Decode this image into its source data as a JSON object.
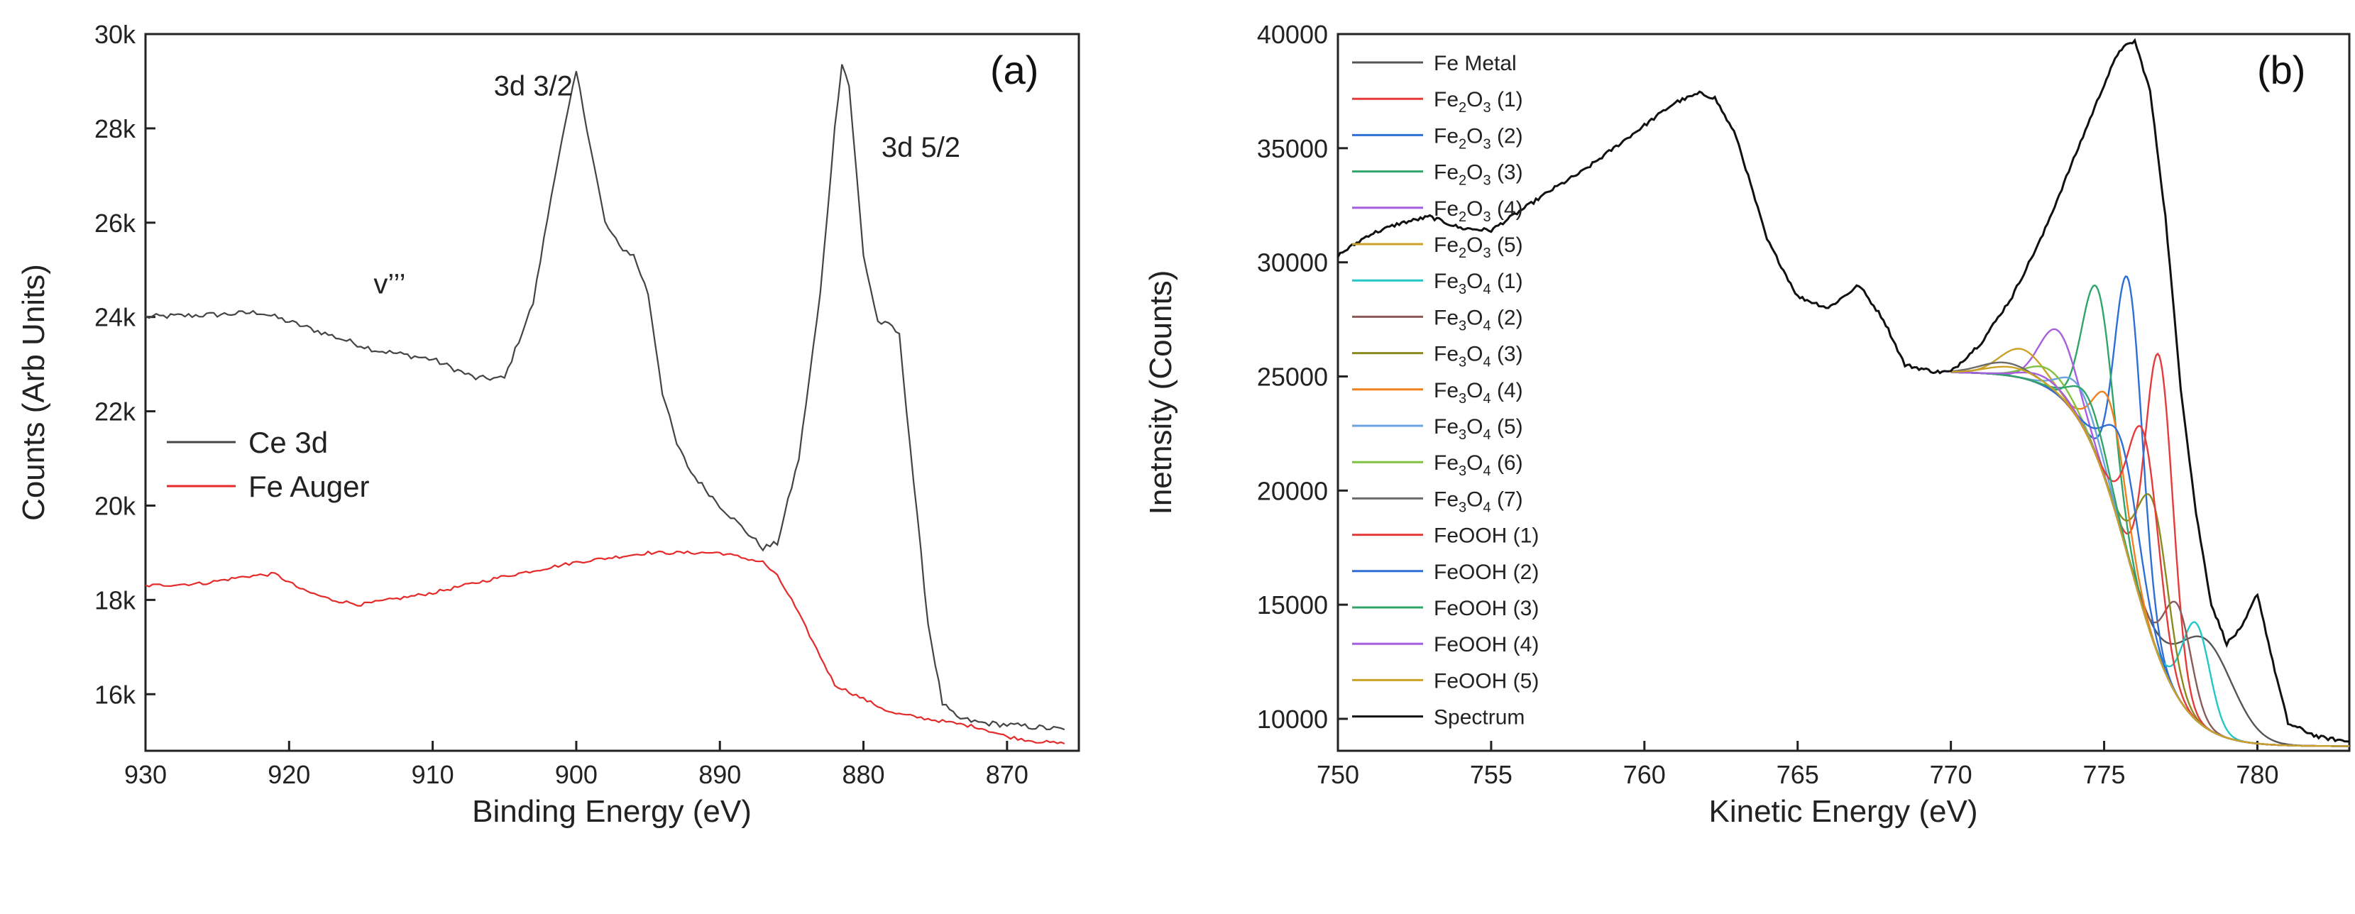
{
  "chart_data": [
    {
      "type": "line",
      "panel_label": "(a)",
      "xlabel": "Binding Energy (eV)",
      "ylabel": "Counts (Arb Units)",
      "xlim": [
        930,
        865
      ],
      "ylim": [
        14800,
        30000
      ],
      "x_ticks": [
        930,
        920,
        910,
        900,
        890,
        880,
        870
      ],
      "y_ticks": [
        16000,
        18000,
        20000,
        22000,
        24000,
        26000,
        28000,
        30000
      ],
      "y_tick_labels": [
        "16k",
        "18k",
        "20k",
        "22k",
        "24k",
        "26k",
        "28k",
        "30k"
      ],
      "annotations": [
        {
          "text": "3d 3/2",
          "x": 903,
          "y": 28700
        },
        {
          "text": "3d 5/2",
          "x": 876,
          "y": 27400
        },
        {
          "text": "v’’’",
          "x": 913,
          "y": 24500
        }
      ],
      "legend": {
        "position": "center-left"
      },
      "series": [
        {
          "name": "Ce 3d",
          "color": "#444444",
          "x": [
            930,
            925,
            922,
            918,
            914,
            910,
            907,
            905,
            903,
            901.5,
            900,
            899,
            898,
            897,
            896,
            895,
            894,
            893,
            892,
            890,
            888,
            887,
            886,
            884.5,
            883,
            882,
            881.5,
            881,
            880,
            879,
            878,
            877.5,
            876.5,
            875.5,
            874.5,
            873.5,
            872,
            870,
            868,
            866
          ],
          "values": [
            24000,
            24050,
            24100,
            23700,
            23300,
            23100,
            22700,
            22700,
            24300,
            27000,
            29200,
            27600,
            26000,
            25500,
            25300,
            24500,
            22400,
            21300,
            20700,
            20000,
            19400,
            19100,
            19200,
            21000,
            24500,
            28000,
            29400,
            28900,
            25300,
            23900,
            23800,
            23600,
            20500,
            17500,
            15800,
            15500,
            15400,
            15350,
            15300,
            15250
          ]
        },
        {
          "name": "Fe Auger",
          "color": "#e52a2a",
          "x": [
            930,
            926,
            923,
            921,
            919,
            917,
            915,
            912,
            910,
            905,
            900,
            895,
            890,
            887,
            886,
            885,
            884,
            883,
            882,
            880,
            878,
            876,
            874,
            872,
            870,
            868,
            866
          ],
          "values": [
            18300,
            18350,
            18500,
            18550,
            18200,
            18000,
            17900,
            18050,
            18150,
            18500,
            18800,
            19000,
            19000,
            18800,
            18500,
            18000,
            17400,
            16800,
            16200,
            15900,
            15600,
            15500,
            15400,
            15300,
            15100,
            15000,
            14950
          ]
        }
      ]
    },
    {
      "type": "line",
      "panel_label": "(b)",
      "xlabel": "Kinetic Energy (eV)",
      "ylabel": "Inetnsity (Counts)",
      "xlim": [
        750,
        783
      ],
      "ylim": [
        8600,
        40000
      ],
      "x_ticks": [
        750,
        755,
        760,
        765,
        770,
        775,
        780
      ],
      "y_ticks": [
        10000,
        15000,
        20000,
        25000,
        30000,
        35000,
        40000
      ],
      "legend": {
        "position": "top-left"
      },
      "series": [
        {
          "name": "Fe Metal",
          "sub": "",
          "suffix": "",
          "color": "#555555",
          "base_start": 770,
          "peak": {
            "x": 778.3,
            "y": 13500,
            "w": 0.9
          }
        },
        {
          "name": "Fe",
          "sub": "2",
          "suffix": "O₃ (1)",
          "label": "Fe₂O₃ (1)",
          "color": "#e63b3b",
          "base_start": 770,
          "peak": {
            "x": 776.8,
            "y": 25900,
            "w": 0.45
          }
        },
        {
          "name": "Fe",
          "sub": "2",
          "suffix": "O₃ (2)",
          "label": "Fe₂O₃ (2)",
          "color": "#2e6fd6",
          "base_start": 770,
          "peak": {
            "x": 775.8,
            "y": 29200,
            "w": 0.45
          }
        },
        {
          "name": "Fe",
          "sub": "2",
          "suffix": "O₃ (3)",
          "label": "Fe₂O₃ (3)",
          "color": "#2fa56a",
          "base_start": 770,
          "peak": {
            "x": 774.8,
            "y": 28800,
            "w": 0.5
          }
        },
        {
          "name": "Fe",
          "sub": "2",
          "suffix": "O₃ (4)",
          "label": "Fe₂O₃ (4)",
          "color": "#a55fe0",
          "base_start": 770,
          "peak": {
            "x": 773.5,
            "y": 27000,
            "w": 0.6
          }
        },
        {
          "name": "Fe",
          "sub": "2",
          "suffix": "O₃ (5)",
          "label": "Fe₂O₃ (5)",
          "color": "#c9a227",
          "base_start": 770,
          "peak": {
            "x": 772.3,
            "y": 26200,
            "w": 0.7
          }
        },
        {
          "name": "Fe",
          "sub": "3",
          "suffix": "O₄ (1)",
          "label": "Fe₃O₄ (1)",
          "color": "#22c7c7",
          "base_start": 770,
          "peak": {
            "x": 778.0,
            "y": 14200,
            "w": 0.45
          }
        },
        {
          "name": "Fe",
          "sub": "3",
          "suffix": "O₄ (2)",
          "label": "Fe₃O₄ (2)",
          "color": "#8a5a5a",
          "base_start": 770,
          "peak": {
            "x": 777.4,
            "y": 15000,
            "w": 0.45
          }
        },
        {
          "name": "Fe",
          "sub": "3",
          "suffix": "O₄ (3)",
          "label": "Fe₃O₄ (3)",
          "color": "#8a8a1e",
          "base_start": 770,
          "peak": {
            "x": 776.6,
            "y": 19500,
            "w": 0.5
          }
        },
        {
          "name": "Fe",
          "sub": "3",
          "suffix": "O₄ (4)",
          "label": "Fe₃O₄ (4)",
          "color": "#f0811f",
          "base_start": 770,
          "peak": {
            "x": 775.2,
            "y": 23800,
            "w": 0.5
          }
        },
        {
          "name": "Fe",
          "sub": "3",
          "suffix": "O₄ (5)",
          "label": "Fe₃O₄ (5)",
          "color": "#6aa3e0",
          "base_start": 770,
          "peak": {
            "x": 774.2,
            "y": 24500,
            "w": 0.6
          }
        },
        {
          "name": "Fe",
          "sub": "3",
          "suffix": "O₄ (6)",
          "label": "Fe₃O₄ (6)",
          "color": "#7fc241",
          "base_start": 770,
          "peak": {
            "x": 773.2,
            "y": 25300,
            "w": 0.7
          }
        },
        {
          "name": "Fe",
          "sub": "3",
          "suffix": "O₄ (7)",
          "label": "Fe₃O₄ (7)",
          "color": "#6b6b6b",
          "base_start": 770,
          "peak": {
            "x": 771.8,
            "y": 25600,
            "w": 0.8
          }
        },
        {
          "name": "FeOOH (1)",
          "sub": "",
          "suffix": "",
          "label": "FeOOH (1)",
          "color": "#e63b3b",
          "base_start": 770,
          "peak": {
            "x": 776.3,
            "y": 22500,
            "w": 0.5
          }
        },
        {
          "name": "FeOOH (2)",
          "sub": "",
          "suffix": "",
          "label": "FeOOH (2)",
          "color": "#2e6fd6",
          "base_start": 770,
          "peak": {
            "x": 775.6,
            "y": 22000,
            "w": 0.55
          }
        },
        {
          "name": "FeOOH (3)",
          "sub": "",
          "suffix": "",
          "label": "FeOOH (3)",
          "color": "#2fa56a",
          "base_start": 770,
          "peak": {
            "x": 774.5,
            "y": 24000,
            "w": 0.55
          }
        },
        {
          "name": "FeOOH (4)",
          "sub": "",
          "suffix": "",
          "label": "FeOOH (4)",
          "color": "#a55fe0",
          "base_start": 770,
          "peak": {
            "x": 773.0,
            "y": 25000,
            "w": 0.7
          }
        },
        {
          "name": "FeOOH (5)",
          "sub": "",
          "suffix": "",
          "label": "FeOOH (5)",
          "color": "#c9a227",
          "base_start": 770,
          "peak": {
            "x": 772.0,
            "y": 25400,
            "w": 0.8
          }
        },
        {
          "name": "Spectrum",
          "sub": "",
          "suffix": "",
          "label": "Spectrum",
          "color": "#111111",
          "x": [
            750,
            751,
            752,
            753,
            754,
            755,
            756,
            757,
            758,
            759,
            760,
            761,
            761.8,
            762.3,
            763,
            764,
            765,
            766,
            767,
            767.8,
            768.5,
            769.5,
            770,
            771,
            772,
            773,
            774,
            775,
            775.5,
            776,
            776.5,
            777,
            777.5,
            778,
            778.5,
            779,
            779.5,
            780,
            780.5,
            781,
            782,
            783
          ],
          "values": [
            30300,
            31200,
            31700,
            32000,
            31500,
            31400,
            32300,
            33200,
            34000,
            35000,
            36000,
            37000,
            37400,
            37200,
            35500,
            31000,
            28500,
            28000,
            29000,
            27500,
            25500,
            25200,
            25200,
            26500,
            28500,
            31200,
            34500,
            37800,
            39300,
            39700,
            37500,
            32000,
            24500,
            19000,
            15000,
            13300,
            14000,
            15500,
            12500,
            9800,
            9200,
            9000
          ]
        }
      ]
    }
  ]
}
